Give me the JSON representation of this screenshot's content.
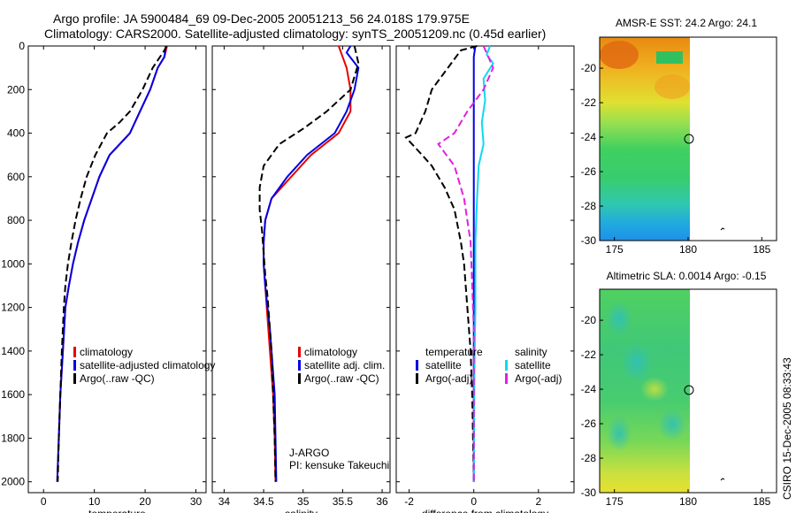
{
  "header": {
    "line1": "Argo profile: JA 5900484_69 09-Dec-2005 20051213_56 24.018S 179.975E",
    "line2": "Climatology: CARS2000. Satellite-adjusted climatology: synTS_20051209.nc (0.45d earlier)"
  },
  "footer": {
    "credit": "CSIRO 15-Dec-2005 08:33:43"
  },
  "colors": {
    "red": "#e60000",
    "blue": "#0000e6",
    "black": "#000000",
    "magenta": "#e020e0",
    "cyan": "#10d8f0"
  },
  "chart_data": [
    {
      "type": "line",
      "id": "temperature",
      "xlabel": "temperature",
      "xlim": [
        -3,
        32
      ],
      "ylim": [
        2050,
        0
      ],
      "xticks": [
        0,
        10,
        20,
        30
      ],
      "xtick_labels": [
        "0",
        "10",
        "20",
        "30"
      ],
      "yticks": [
        0,
        200,
        400,
        600,
        800,
        1000,
        1200,
        1400,
        1600,
        1800,
        2000
      ],
      "ytick_labels": [
        "0",
        "200",
        "400",
        "600",
        "800",
        "1000",
        "1200",
        "1400",
        "1600",
        "1800",
        "2000"
      ],
      "legend": [
        "climatology",
        "satellite-adjusted climatology",
        "Argo(..raw -QC)"
      ],
      "series": [
        {
          "name": "climatology",
          "color": "red",
          "dash": "",
          "points": [
            [
              24.3,
              0
            ],
            [
              23.8,
              50
            ],
            [
              22.5,
              100
            ],
            [
              21,
              200
            ],
            [
              19,
              300
            ],
            [
              17,
              400
            ],
            [
              15,
              450
            ],
            [
              13,
              500
            ],
            [
              11,
              600
            ],
            [
              9.5,
              700
            ],
            [
              8,
              800
            ],
            [
              6.8,
              900
            ],
            [
              5.8,
              1000
            ],
            [
              5,
              1100
            ],
            [
              4.3,
              1200
            ],
            [
              3.8,
              1400
            ],
            [
              3.3,
              1600
            ],
            [
              3,
              1800
            ],
            [
              2.7,
              2000
            ]
          ]
        },
        {
          "name": "satellite-adjusted climatology",
          "color": "blue",
          "dash": "",
          "points": [
            [
              24.1,
              0
            ],
            [
              23.8,
              50
            ],
            [
              22.5,
              100
            ],
            [
              21,
              200
            ],
            [
              19,
              300
            ],
            [
              17,
              400
            ],
            [
              15,
              450
            ],
            [
              13,
              500
            ],
            [
              11,
              600
            ],
            [
              9.5,
              700
            ],
            [
              8,
              800
            ],
            [
              6.8,
              900
            ],
            [
              5.8,
              1000
            ],
            [
              5,
              1100
            ],
            [
              4.3,
              1200
            ],
            [
              3.8,
              1400
            ],
            [
              3.3,
              1600
            ],
            [
              3,
              1800
            ],
            [
              2.7,
              2000
            ]
          ]
        },
        {
          "name": "Argo(..raw -QC)",
          "color": "black",
          "dash": "8,4",
          "points": [
            [
              24.2,
              0
            ],
            [
              23.8,
              20
            ],
            [
              21.5,
              100
            ],
            [
              19.5,
              200
            ],
            [
              17,
              300
            ],
            [
              15,
              350
            ],
            [
              12.5,
              400
            ],
            [
              10.2,
              500
            ],
            [
              8.5,
              600
            ],
            [
              7.3,
              700
            ],
            [
              6.3,
              800
            ],
            [
              5.5,
              900
            ],
            [
              4.8,
              1000
            ],
            [
              4.3,
              1100
            ],
            [
              4,
              1200
            ],
            [
              3.6,
              1400
            ],
            [
              3.3,
              1600
            ],
            [
              3,
              1800
            ],
            [
              2.8,
              2000
            ]
          ]
        }
      ]
    },
    {
      "type": "line",
      "id": "salinity",
      "xlabel": "salinity",
      "xlim": [
        33.85,
        36.1
      ],
      "ylim": [
        2050,
        0
      ],
      "xticks": [
        34,
        34.5,
        35,
        35.5,
        36
      ],
      "xtick_labels": [
        "34",
        "34.5",
        "35",
        "35.5",
        "36"
      ],
      "legend": [
        "climatology",
        "satellite adj. clim.",
        "Argo(..raw -QC)"
      ],
      "annotation": [
        "J-ARGO",
        "PI: kensuke Takeuchi"
      ],
      "series": [
        {
          "name": "climatology",
          "color": "red",
          "dash": "",
          "points": [
            [
              35.45,
              0
            ],
            [
              35.5,
              50
            ],
            [
              35.55,
              100
            ],
            [
              35.6,
              200
            ],
            [
              35.6,
              300
            ],
            [
              35.45,
              400
            ],
            [
              35.1,
              500
            ],
            [
              34.85,
              600
            ],
            [
              34.6,
              700
            ],
            [
              34.52,
              800
            ],
            [
              34.5,
              900
            ],
            [
              34.5,
              1000
            ],
            [
              34.52,
              1100
            ],
            [
              34.54,
              1200
            ],
            [
              34.56,
              1300
            ],
            [
              34.58,
              1400
            ],
            [
              34.6,
              1500
            ],
            [
              34.62,
              1600
            ],
            [
              34.64,
              1800
            ],
            [
              34.65,
              2000
            ]
          ]
        },
        {
          "name": "satellite adj. clim.",
          "color": "blue",
          "dash": "",
          "points": [
            [
              35.6,
              0
            ],
            [
              35.55,
              30
            ],
            [
              35.7,
              100
            ],
            [
              35.65,
              200
            ],
            [
              35.55,
              300
            ],
            [
              35.4,
              400
            ],
            [
              35.05,
              500
            ],
            [
              34.8,
              600
            ],
            [
              34.6,
              700
            ],
            [
              34.52,
              800
            ],
            [
              34.5,
              900
            ],
            [
              34.5,
              1000
            ],
            [
              34.52,
              1100
            ],
            [
              34.55,
              1200
            ],
            [
              34.58,
              1300
            ],
            [
              34.6,
              1400
            ],
            [
              34.62,
              1500
            ],
            [
              34.64,
              1600
            ],
            [
              34.65,
              1800
            ],
            [
              34.66,
              2000
            ]
          ]
        },
        {
          "name": "Argo(..raw -QC)",
          "color": "black",
          "dash": "8,4",
          "points": [
            [
              35.65,
              0
            ],
            [
              35.7,
              80
            ],
            [
              35.6,
              200
            ],
            [
              35.3,
              300
            ],
            [
              35.0,
              380
            ],
            [
              34.7,
              450
            ],
            [
              34.5,
              550
            ],
            [
              34.45,
              650
            ],
            [
              34.45,
              750
            ],
            [
              34.48,
              850
            ],
            [
              34.5,
              950
            ],
            [
              34.52,
              1050
            ],
            [
              34.55,
              1150
            ],
            [
              34.57,
              1250
            ],
            [
              34.6,
              1400
            ],
            [
              34.62,
              1600
            ],
            [
              34.64,
              1800
            ],
            [
              34.65,
              2000
            ]
          ]
        }
      ]
    },
    {
      "type": "line",
      "id": "difference",
      "xlabel": "difference from climatology",
      "xlim": [
        -2.4,
        3.1
      ],
      "ylim": [
        2050,
        0
      ],
      "xticks": [
        -2,
        0,
        2
      ],
      "xtick_labels": [
        "-2",
        "0",
        "2"
      ],
      "legend": [
        "temperature",
        "satellite",
        "Argo(-adj)",
        "salinity",
        "satellite",
        "Argo(-adj)"
      ],
      "series": [
        {
          "name": "temperature satellite",
          "color": "blue",
          "dash": "",
          "points": [
            [
              0.05,
              0
            ],
            [
              0,
              50
            ],
            [
              0,
              200
            ],
            [
              0,
              500
            ],
            [
              0,
              1000
            ],
            [
              0,
              1500
            ],
            [
              0,
              2000
            ]
          ]
        },
        {
          "name": "temperature Argo(-adj)",
          "color": "black",
          "dash": "8,4",
          "points": [
            [
              0.1,
              0
            ],
            [
              -0.4,
              20
            ],
            [
              -0.8,
              100
            ],
            [
              -1.3,
              200
            ],
            [
              -1.5,
              300
            ],
            [
              -1.8,
              400
            ],
            [
              -2.1,
              420
            ],
            [
              -1.6,
              500
            ],
            [
              -1.3,
              550
            ],
            [
              -0.9,
              650
            ],
            [
              -0.6,
              750
            ],
            [
              -0.4,
              900
            ],
            [
              -0.3,
              1000
            ],
            [
              -0.2,
              1200
            ],
            [
              -0.1,
              1400
            ],
            [
              -0.05,
              1600
            ],
            [
              0,
              2000
            ]
          ]
        },
        {
          "name": "salinity satellite",
          "color": "cyan",
          "dash": "",
          "points": [
            [
              0.5,
              0
            ],
            [
              0.4,
              40
            ],
            [
              0.6,
              80
            ],
            [
              0.3,
              150
            ],
            [
              0.35,
              250
            ],
            [
              0.25,
              350
            ],
            [
              0.3,
              450
            ],
            [
              0.15,
              550
            ],
            [
              0.1,
              700
            ],
            [
              0.05,
              900
            ],
            [
              0.05,
              1200
            ],
            [
              0.02,
              1500
            ],
            [
              0,
              2000
            ]
          ]
        },
        {
          "name": "salinity Argo(-adj)",
          "color": "magenta",
          "dash": "8,4",
          "points": [
            [
              0.3,
              0
            ],
            [
              0.6,
              100
            ],
            [
              0.3,
              200
            ],
            [
              -0.2,
              300
            ],
            [
              -0.6,
              400
            ],
            [
              -1.1,
              450
            ],
            [
              -0.6,
              550
            ],
            [
              -0.3,
              700
            ],
            [
              -0.1,
              900
            ],
            [
              -0.05,
              1100
            ],
            [
              0,
              1300
            ],
            [
              0,
              2000
            ]
          ]
        }
      ]
    }
  ],
  "maps": [
    {
      "title": "AMSR-E SST: 24.2 Argo: 24.1",
      "xticks": [
        175,
        180,
        185
      ],
      "xtick_labels": [
        "175",
        "180",
        "185"
      ],
      "yticks": [
        -20,
        -22,
        -24,
        -26,
        -28,
        -30
      ],
      "ytick_labels": [
        "-20",
        "-22",
        "-24",
        "-26",
        "-28",
        "-30"
      ],
      "xlim": [
        174,
        186
      ],
      "ylim": [
        -30,
        -18.2
      ],
      "marker": [
        180,
        -24.0
      ]
    },
    {
      "title": "Altimetric SLA: 0.0014  Argo: -0.15",
      "xticks": [
        175,
        180,
        185
      ],
      "xtick_labels": [
        "175",
        "180",
        "185"
      ],
      "yticks": [
        -20,
        -22,
        -24,
        -26,
        -28,
        -30
      ],
      "ytick_labels": [
        "-20",
        "-22",
        "-24",
        "-26",
        "-28",
        "-30"
      ],
      "xlim": [
        174,
        186
      ],
      "ylim": [
        -30,
        -18.2
      ],
      "marker": [
        180,
        -24.0
      ]
    }
  ]
}
